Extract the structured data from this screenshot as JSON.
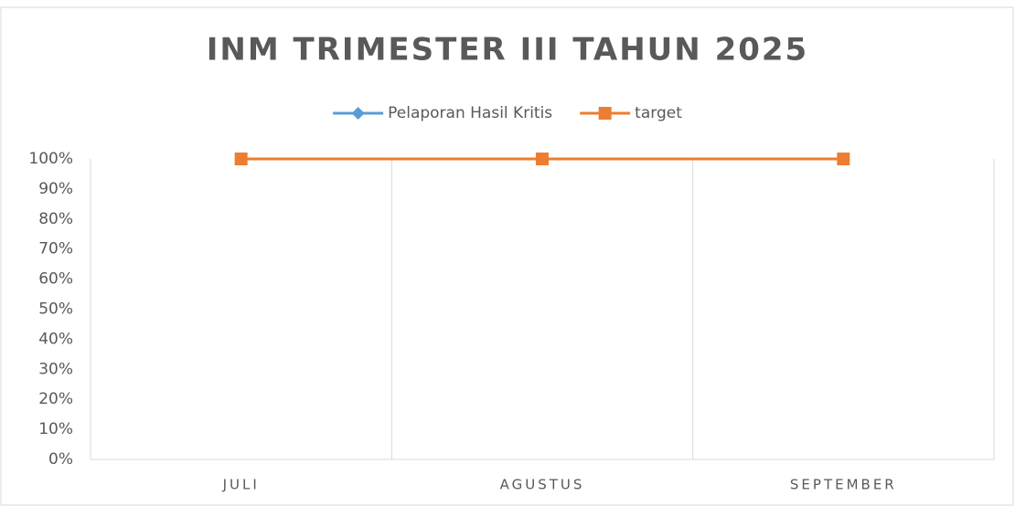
{
  "chart_data": {
    "type": "line",
    "title": "INM TRIMESTER III TAHUN 2025",
    "categories": [
      "JULI",
      "AGUSTUS",
      "SEPTEMBER"
    ],
    "series": [
      {
        "name": "Pelaporan Hasil Kritis",
        "color": "#5b9bd5",
        "marker": "diamond",
        "values": [
          100,
          100,
          100
        ]
      },
      {
        "name": "target",
        "color": "#ed7d31",
        "marker": "square",
        "values": [
          100,
          100,
          100
        ]
      }
    ],
    "ylim": [
      0,
      100
    ],
    "yticks": [
      {
        "value": 0,
        "label": "0%"
      },
      {
        "value": 10,
        "label": "10%"
      },
      {
        "value": 20,
        "label": "20%"
      },
      {
        "value": 30,
        "label": "30%"
      },
      {
        "value": 40,
        "label": "40%"
      },
      {
        "value": 50,
        "label": "50%"
      },
      {
        "value": 60,
        "label": "60%"
      },
      {
        "value": 70,
        "label": "70%"
      },
      {
        "value": 80,
        "label": "80%"
      },
      {
        "value": 90,
        "label": "90%"
      },
      {
        "value": 100,
        "label": "100%"
      }
    ],
    "grid": false,
    "legend": "top"
  }
}
